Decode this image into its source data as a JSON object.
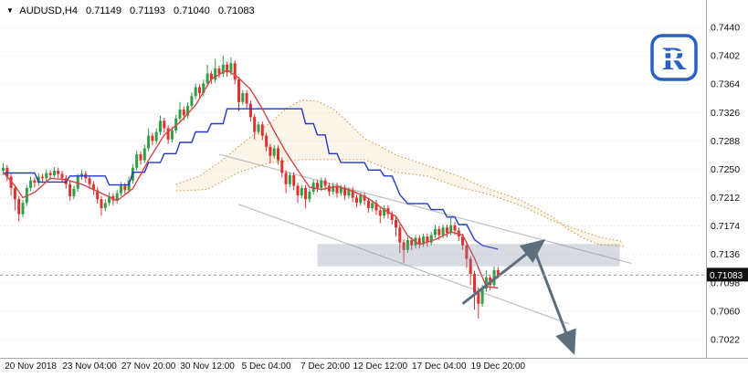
{
  "header": {
    "symbol_label": "AUDUSD,H4",
    "open": "0.71149",
    "high": "0.71193",
    "low": "0.71040",
    "close": "0.71083"
  },
  "logo": {
    "letter": "R",
    "color": "#2a5fc4"
  },
  "price_axis": {
    "labels": [
      "0.7440",
      "0.7402",
      "0.7364",
      "0.7326",
      "0.7288",
      "0.7250",
      "0.7212",
      "0.7174",
      "0.7136",
      "0.7098",
      "0.7060",
      "0.7022"
    ],
    "current_price": "0.71083"
  },
  "time_axis": {
    "ticks": [
      {
        "label": "20 Nov 2018",
        "i": 7
      },
      {
        "label": "23 Nov 04:00",
        "i": 22
      },
      {
        "label": "27 Nov 20:00",
        "i": 37
      },
      {
        "label": "30 Nov 12:00",
        "i": 52
      },
      {
        "label": "5 Dec 04:00",
        "i": 67
      },
      {
        "label": "7 Dec 20:00",
        "i": 82
      },
      {
        "label": "12 Dec 12:00",
        "i": 96
      },
      {
        "label": "17 Dec 04:00",
        "i": 111
      },
      {
        "label": "19 Dec 20:00",
        "i": 126
      }
    ]
  },
  "colors": {
    "up": "#2f9e44",
    "down": "#e03131",
    "tenkan": "#d64545",
    "kijun": "#2438c8",
    "senkou": "#dda14e",
    "cloud_fill": "rgba(221,161,78,0.12)",
    "channel": "#b9c0c9",
    "zone_fill": "rgba(125,140,160,0.30)",
    "arrow": "#5d6e7d",
    "grid": "#e2e2e2",
    "axis_line": "#a8a8a8",
    "axis_text": "#111111",
    "badge_bg": "#111111",
    "badge_text": "#ffffff",
    "price_line": "#9a9a9a"
  },
  "chart_data": {
    "type": "candlestick",
    "symbol": "AUDUSD",
    "timeframe": "H4",
    "last_ohlc": {
      "open": 0.71149,
      "high": 0.71193,
      "low": 0.7104,
      "close": 0.71083
    },
    "y_axis": {
      "min": 0.7022,
      "max": 0.744,
      "tick_step": 0.0038
    },
    "candles_ohlc": [
      [
        0.7248,
        0.7258,
        0.7242,
        0.7252
      ],
      [
        0.7252,
        0.7256,
        0.7234,
        0.724
      ],
      [
        0.724,
        0.7244,
        0.7215,
        0.7225
      ],
      [
        0.7225,
        0.7229,
        0.7195,
        0.721
      ],
      [
        0.721,
        0.7214,
        0.718,
        0.719
      ],
      [
        0.719,
        0.7209,
        0.7186,
        0.7205
      ],
      [
        0.7205,
        0.7229,
        0.7201,
        0.7225
      ],
      [
        0.7225,
        0.724,
        0.7221,
        0.7235
      ],
      [
        0.7235,
        0.7239,
        0.7226,
        0.7232
      ],
      [
        0.7232,
        0.7245,
        0.7228,
        0.724
      ],
      [
        0.724,
        0.7244,
        0.7232,
        0.7238
      ],
      [
        0.7238,
        0.725,
        0.7234,
        0.7245
      ],
      [
        0.7245,
        0.7249,
        0.7236,
        0.7242
      ],
      [
        0.7242,
        0.7253,
        0.7238,
        0.7248
      ],
      [
        0.7248,
        0.7252,
        0.7238,
        0.7244
      ],
      [
        0.7244,
        0.7248,
        0.7232,
        0.7238
      ],
      [
        0.7238,
        0.7242,
        0.7224,
        0.723
      ],
      [
        0.723,
        0.7234,
        0.7208,
        0.7214
      ],
      [
        0.7214,
        0.7228,
        0.721,
        0.7224
      ],
      [
        0.7224,
        0.7244,
        0.722,
        0.724
      ],
      [
        0.724,
        0.7249,
        0.7236,
        0.7244
      ],
      [
        0.7244,
        0.7248,
        0.7232,
        0.7238
      ],
      [
        0.7238,
        0.7242,
        0.7224,
        0.723
      ],
      [
        0.723,
        0.7234,
        0.7216,
        0.7222
      ],
      [
        0.7222,
        0.7226,
        0.7204,
        0.721
      ],
      [
        0.721,
        0.7214,
        0.7188,
        0.7198
      ],
      [
        0.7198,
        0.721,
        0.7194,
        0.7205
      ],
      [
        0.7205,
        0.7219,
        0.7201,
        0.7214
      ],
      [
        0.7214,
        0.7218,
        0.7202,
        0.7208
      ],
      [
        0.7208,
        0.7223,
        0.7204,
        0.7218
      ],
      [
        0.7218,
        0.7233,
        0.7214,
        0.7228
      ],
      [
        0.7228,
        0.7232,
        0.7216,
        0.7222
      ],
      [
        0.7222,
        0.724,
        0.7218,
        0.7235
      ],
      [
        0.7235,
        0.7257,
        0.7231,
        0.7252
      ],
      [
        0.7252,
        0.7275,
        0.7248,
        0.727
      ],
      [
        0.727,
        0.7274,
        0.7256,
        0.7262
      ],
      [
        0.7262,
        0.7283,
        0.7258,
        0.7278
      ],
      [
        0.7278,
        0.7305,
        0.7274,
        0.7295
      ],
      [
        0.7295,
        0.7299,
        0.7282,
        0.7288
      ],
      [
        0.7288,
        0.7305,
        0.7284,
        0.73
      ],
      [
        0.73,
        0.7322,
        0.7296,
        0.7315
      ],
      [
        0.7315,
        0.7319,
        0.7299,
        0.7305
      ],
      [
        0.7305,
        0.7309,
        0.7284,
        0.729
      ],
      [
        0.729,
        0.7307,
        0.7286,
        0.7302
      ],
      [
        0.7302,
        0.7323,
        0.7298,
        0.7318
      ],
      [
        0.7318,
        0.734,
        0.7314,
        0.733
      ],
      [
        0.733,
        0.7334,
        0.7316,
        0.7322
      ],
      [
        0.7322,
        0.734,
        0.7318,
        0.7335
      ],
      [
        0.7335,
        0.7353,
        0.7331,
        0.7348
      ],
      [
        0.7348,
        0.7365,
        0.7344,
        0.736
      ],
      [
        0.736,
        0.7364,
        0.7346,
        0.7352
      ],
      [
        0.7352,
        0.737,
        0.7348,
        0.7365
      ],
      [
        0.7365,
        0.739,
        0.7361,
        0.7378
      ],
      [
        0.7378,
        0.7382,
        0.7364,
        0.737
      ],
      [
        0.737,
        0.7398,
        0.7366,
        0.7385
      ],
      [
        0.7385,
        0.7389,
        0.7372,
        0.7378
      ],
      [
        0.7378,
        0.7402,
        0.7374,
        0.739
      ],
      [
        0.739,
        0.7394,
        0.7374,
        0.738
      ],
      [
        0.738,
        0.74,
        0.7376,
        0.7392
      ],
      [
        0.7392,
        0.7396,
        0.7364,
        0.737
      ],
      [
        0.737,
        0.7374,
        0.7328,
        0.734
      ],
      [
        0.734,
        0.7356,
        0.7336,
        0.7352
      ],
      [
        0.7352,
        0.7356,
        0.7332,
        0.7338
      ],
      [
        0.7338,
        0.7342,
        0.7314,
        0.732
      ],
      [
        0.732,
        0.7324,
        0.729,
        0.73
      ],
      [
        0.73,
        0.7314,
        0.7296,
        0.731
      ],
      [
        0.731,
        0.7314,
        0.7289,
        0.7295
      ],
      [
        0.7295,
        0.7299,
        0.7274,
        0.728
      ],
      [
        0.728,
        0.7284,
        0.7258,
        0.7268
      ],
      [
        0.7268,
        0.7282,
        0.7264,
        0.7278
      ],
      [
        0.7278,
        0.7282,
        0.7256,
        0.7262
      ],
      [
        0.7262,
        0.7266,
        0.7239,
        0.7245
      ],
      [
        0.7245,
        0.7249,
        0.7218,
        0.723
      ],
      [
        0.723,
        0.7246,
        0.7226,
        0.7242
      ],
      [
        0.7242,
        0.7246,
        0.7222,
        0.7228
      ],
      [
        0.7228,
        0.7232,
        0.7205,
        0.7215
      ],
      [
        0.7215,
        0.7229,
        0.7211,
        0.7225
      ],
      [
        0.7225,
        0.7229,
        0.7198,
        0.721
      ],
      [
        0.721,
        0.7224,
        0.7206,
        0.722
      ],
      [
        0.722,
        0.7236,
        0.7216,
        0.7232
      ],
      [
        0.7232,
        0.7236,
        0.7219,
        0.7225
      ],
      [
        0.7225,
        0.7239,
        0.7221,
        0.7235
      ],
      [
        0.7235,
        0.7239,
        0.7222,
        0.7228
      ],
      [
        0.7228,
        0.7232,
        0.7214,
        0.722
      ],
      [
        0.722,
        0.7232,
        0.7216,
        0.7228
      ],
      [
        0.7228,
        0.7232,
        0.7212,
        0.7218
      ],
      [
        0.7218,
        0.7229,
        0.7214,
        0.7225
      ],
      [
        0.7225,
        0.7229,
        0.7209,
        0.7215
      ],
      [
        0.7215,
        0.7226,
        0.7211,
        0.7222
      ],
      [
        0.7222,
        0.7226,
        0.7206,
        0.7212
      ],
      [
        0.7212,
        0.7216,
        0.7199,
        0.7205
      ],
      [
        0.7205,
        0.7219,
        0.7201,
        0.7215
      ],
      [
        0.7215,
        0.7219,
        0.7202,
        0.7208
      ],
      [
        0.7208,
        0.7212,
        0.7192,
        0.7198
      ],
      [
        0.7198,
        0.7209,
        0.7194,
        0.7205
      ],
      [
        0.7205,
        0.7209,
        0.7189,
        0.7195
      ],
      [
        0.7195,
        0.7199,
        0.7178,
        0.7188
      ],
      [
        0.7188,
        0.7202,
        0.7184,
        0.7198
      ],
      [
        0.7198,
        0.7202,
        0.7184,
        0.719
      ],
      [
        0.719,
        0.7194,
        0.7176,
        0.7182
      ],
      [
        0.7182,
        0.7186,
        0.716,
        0.7172
      ],
      [
        0.7172,
        0.7176,
        0.7138,
        0.7152
      ],
      [
        0.7152,
        0.7156,
        0.7125,
        0.7142
      ],
      [
        0.7142,
        0.7159,
        0.7138,
        0.7155
      ],
      [
        0.7155,
        0.7159,
        0.7142,
        0.7148
      ],
      [
        0.7148,
        0.7162,
        0.7144,
        0.7158
      ],
      [
        0.7158,
        0.7162,
        0.7144,
        0.715
      ],
      [
        0.715,
        0.7164,
        0.7146,
        0.716
      ],
      [
        0.716,
        0.7164,
        0.7146,
        0.7152
      ],
      [
        0.7152,
        0.7166,
        0.7148,
        0.7162
      ],
      [
        0.7162,
        0.7175,
        0.7158,
        0.717
      ],
      [
        0.717,
        0.7174,
        0.7156,
        0.7162
      ],
      [
        0.7162,
        0.7176,
        0.7158,
        0.7172
      ],
      [
        0.7172,
        0.7176,
        0.7159,
        0.7165
      ],
      [
        0.7165,
        0.7185,
        0.7161,
        0.7175
      ],
      [
        0.7175,
        0.7179,
        0.7162,
        0.7168
      ],
      [
        0.7168,
        0.7172,
        0.7154,
        0.716
      ],
      [
        0.716,
        0.7164,
        0.7142,
        0.7148
      ],
      [
        0.7148,
        0.7152,
        0.7118,
        0.713
      ],
      [
        0.713,
        0.7134,
        0.7095,
        0.711
      ],
      [
        0.711,
        0.7114,
        0.7062,
        0.7085
      ],
      [
        0.7085,
        0.7092,
        0.705,
        0.707
      ],
      [
        0.707,
        0.7095,
        0.7066,
        0.709
      ],
      [
        0.709,
        0.7115,
        0.7086,
        0.7105
      ],
      [
        0.7105,
        0.7109,
        0.7088,
        0.7095
      ],
      [
        0.7095,
        0.712,
        0.7091,
        0.7115
      ],
      [
        0.71149,
        0.71193,
        0.7104,
        0.71083
      ]
    ],
    "overlays": {
      "tenkan_sen": [
        [
          0,
          0.7246
        ],
        [
          3,
          0.7228
        ],
        [
          5,
          0.7212
        ],
        [
          8,
          0.7219
        ],
        [
          12,
          0.7238
        ],
        [
          16,
          0.7236
        ],
        [
          20,
          0.723
        ],
        [
          25,
          0.7218
        ],
        [
          29,
          0.7208
        ],
        [
          33,
          0.7224
        ],
        [
          37,
          0.7262
        ],
        [
          41,
          0.7296
        ],
        [
          45,
          0.7313
        ],
        [
          49,
          0.7336
        ],
        [
          53,
          0.7371
        ],
        [
          57,
          0.7383
        ],
        [
          60,
          0.7372
        ],
        [
          63,
          0.7357
        ],
        [
          66,
          0.7331
        ],
        [
          69,
          0.7301
        ],
        [
          72,
          0.7273
        ],
        [
          75,
          0.7249
        ],
        [
          78,
          0.7226
        ],
        [
          81,
          0.7223
        ],
        [
          85,
          0.7227
        ],
        [
          89,
          0.7221
        ],
        [
          93,
          0.7211
        ],
        [
          97,
          0.7196
        ],
        [
          100,
          0.7187
        ],
        [
          103,
          0.7161
        ],
        [
          106,
          0.7149
        ],
        [
          110,
          0.7156
        ],
        [
          114,
          0.7166
        ],
        [
          117,
          0.7162
        ],
        [
          120,
          0.7131
        ],
        [
          123,
          0.7093
        ],
        [
          126,
          0.7091
        ]
      ],
      "kijun_sen": [
        [
          0,
          0.7245
        ],
        [
          8,
          0.7245
        ],
        [
          9,
          0.7233
        ],
        [
          16,
          0.7233
        ],
        [
          17,
          0.7241
        ],
        [
          26,
          0.7241
        ],
        [
          27,
          0.7229
        ],
        [
          32,
          0.7229
        ],
        [
          33,
          0.7246
        ],
        [
          36,
          0.7246
        ],
        [
          37,
          0.7259
        ],
        [
          40,
          0.7259
        ],
        [
          41,
          0.7271
        ],
        [
          44,
          0.7271
        ],
        [
          45,
          0.7286
        ],
        [
          48,
          0.7286
        ],
        [
          49,
          0.73
        ],
        [
          52,
          0.73
        ],
        [
          53,
          0.7311
        ],
        [
          56,
          0.7311
        ],
        [
          57,
          0.7331
        ],
        [
          76,
          0.7331
        ],
        [
          77,
          0.7311
        ],
        [
          79,
          0.7311
        ],
        [
          80,
          0.7296
        ],
        [
          82,
          0.7296
        ],
        [
          83,
          0.7271
        ],
        [
          85,
          0.7271
        ],
        [
          86,
          0.7259
        ],
        [
          92,
          0.7259
        ],
        [
          93,
          0.7249
        ],
        [
          96,
          0.7249
        ],
        [
          97,
          0.7241
        ],
        [
          99,
          0.7241
        ],
        [
          100,
          0.7229
        ],
        [
          101,
          0.7216
        ],
        [
          103,
          0.7204
        ],
        [
          108,
          0.7204
        ],
        [
          109,
          0.7196
        ],
        [
          112,
          0.7196
        ],
        [
          113,
          0.7186
        ],
        [
          115,
          0.7186
        ],
        [
          116,
          0.7176
        ],
        [
          118,
          0.7176
        ],
        [
          119,
          0.7166
        ],
        [
          120,
          0.7156
        ],
        [
          122,
          0.7148
        ],
        [
          126,
          0.7143
        ]
      ],
      "senkou_span_a": [
        [
          44,
          0.723
        ],
        [
          50,
          0.7241
        ],
        [
          56,
          0.7263
        ],
        [
          60,
          0.7281
        ],
        [
          64,
          0.7297
        ],
        [
          68,
          0.7312
        ],
        [
          72,
          0.7331
        ],
        [
          76,
          0.7343
        ],
        [
          80,
          0.7341
        ],
        [
          84,
          0.7331
        ],
        [
          88,
          0.7312
        ],
        [
          92,
          0.7291
        ],
        [
          96,
          0.7281
        ],
        [
          100,
          0.7269
        ],
        [
          104,
          0.7262
        ],
        [
          108,
          0.7255
        ],
        [
          112,
          0.7248
        ],
        [
          116,
          0.7241
        ],
        [
          120,
          0.7231
        ],
        [
          124,
          0.7223
        ],
        [
          128,
          0.7216
        ],
        [
          132,
          0.7208
        ],
        [
          136,
          0.7197
        ],
        [
          140,
          0.7186
        ],
        [
          144,
          0.7169
        ],
        [
          148,
          0.7157
        ],
        [
          152,
          0.7149
        ],
        [
          158,
          0.7147
        ]
      ],
      "senkou_span_b": [
        [
          44,
          0.7221
        ],
        [
          52,
          0.7223
        ],
        [
          60,
          0.7246
        ],
        [
          68,
          0.7259
        ],
        [
          76,
          0.7263
        ],
        [
          84,
          0.7263
        ],
        [
          92,
          0.7263
        ],
        [
          100,
          0.7246
        ],
        [
          108,
          0.7241
        ],
        [
          116,
          0.7226
        ],
        [
          124,
          0.7216
        ],
        [
          132,
          0.7201
        ],
        [
          140,
          0.7181
        ],
        [
          148,
          0.7166
        ],
        [
          152,
          0.7159
        ],
        [
          158,
          0.7153
        ]
      ],
      "channel_upper": [
        [
          55,
          0.727
        ],
        [
          160,
          0.7124
        ]
      ],
      "channel_lower": [
        [
          60,
          0.7203
        ],
        [
          144,
          0.7043
        ]
      ],
      "highlight_zone": {
        "i0": 80,
        "i1": 157,
        "p_top": 0.715,
        "p_bottom": 0.712
      },
      "forecast_arrows": [
        {
          "from": [
            117,
            0.707
          ],
          "to": [
            137,
            0.7152
          ]
        },
        {
          "from": [
            135,
            0.7146
          ],
          "to": [
            145,
            0.7008
          ]
        }
      ],
      "current_price": 0.71083
    }
  }
}
